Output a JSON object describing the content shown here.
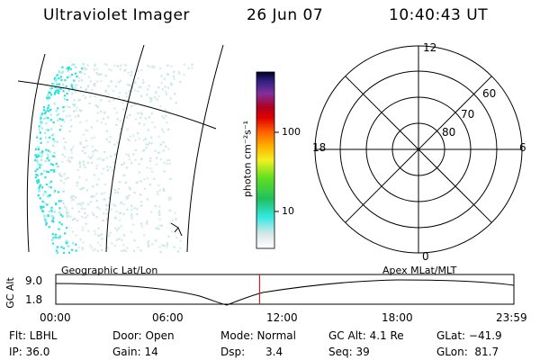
{
  "header": {
    "instrument": "Ultraviolet Imager",
    "date": "26 Jun 07",
    "time": "10:40:43 UT"
  },
  "colorbar": {
    "unit_label": "photon cm⁻²s⁻¹",
    "ticks": [
      "100",
      "10"
    ]
  },
  "polar": {
    "mlt_labels": {
      "top": "12",
      "left": "18",
      "right": "6",
      "bottom": "0"
    },
    "lat_labels": [
      "60",
      "70",
      "80"
    ]
  },
  "orbit_panel": {
    "ylabel": "GC Alt",
    "yticks": [
      "9.0",
      "1.8"
    ],
    "left_caption": "Geographic Lat/Lon",
    "right_caption": "Apex  MLat/MLT",
    "xticks": [
      "00:00",
      "06:00",
      "12:00",
      "18:00",
      "23:59"
    ],
    "marker_time": "10:40",
    "marker_color": "#d02020"
  },
  "info": {
    "row1": [
      "Flt: LBHL",
      "Door: Open",
      "Mode: Normal",
      "GC Alt: 4.1 Re",
      "GLat: −41.9"
    ],
    "row2": [
      "IP: 36.0",
      "Gain: 14",
      "Dsp:      3.4",
      "Seq: 39",
      "GLon:  81.7"
    ]
  }
}
